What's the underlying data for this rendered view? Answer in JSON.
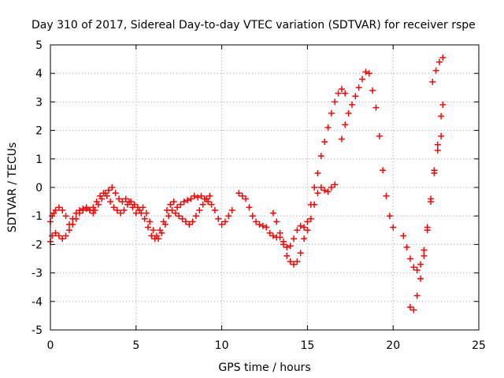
{
  "chart_data": {
    "type": "scatter",
    "title": "Day 310 of 2017, Sidereal Day-to-day VTEC variation (SDTVAR) for receiver rspe",
    "xlabel": "GPS time / hours",
    "ylabel": "SDTVAR / TECUs",
    "xlim": [
      0,
      25
    ],
    "ylim": [
      -5,
      5
    ],
    "x_ticks": [
      0,
      5,
      10,
      15,
      20,
      25
    ],
    "y_ticks": [
      -5,
      -4,
      -3,
      -2,
      -1,
      0,
      1,
      2,
      3,
      4,
      5
    ],
    "grid": true,
    "marker": "+",
    "color": "#ff0000",
    "series": [
      {
        "points": [
          [
            0.0,
            -1.2
          ],
          [
            0.1,
            -1.0
          ],
          [
            0.2,
            -0.9
          ],
          [
            0.3,
            -0.8
          ],
          [
            0.5,
            -0.7
          ],
          [
            0.7,
            -0.8
          ],
          [
            0.9,
            -1.0
          ],
          [
            1.1,
            -1.3
          ],
          [
            1.3,
            -1.1
          ],
          [
            1.5,
            -0.9
          ],
          [
            1.7,
            -0.8
          ],
          [
            1.9,
            -0.75
          ],
          [
            2.1,
            -0.7
          ],
          [
            2.3,
            -0.8
          ],
          [
            2.5,
            -0.9
          ],
          [
            2.6,
            -0.8
          ],
          [
            2.8,
            -0.6
          ],
          [
            3.0,
            -0.4
          ],
          [
            3.2,
            -0.2
          ],
          [
            3.4,
            -0.1
          ],
          [
            3.6,
            0.0
          ],
          [
            3.8,
            -0.2
          ],
          [
            4.0,
            -0.4
          ],
          [
            4.2,
            -0.5
          ],
          [
            4.4,
            -0.4
          ],
          [
            4.6,
            -0.5
          ],
          [
            4.8,
            -0.7
          ],
          [
            5.0,
            -0.9
          ],
          [
            5.2,
            -0.8
          ],
          [
            5.4,
            -0.7
          ],
          [
            5.6,
            -0.9
          ],
          [
            5.8,
            -1.2
          ],
          [
            6.0,
            -1.5
          ],
          [
            6.2,
            -1.7
          ],
          [
            6.4,
            -1.5
          ],
          [
            6.6,
            -1.2
          ],
          [
            6.8,
            -0.8
          ],
          [
            7.0,
            -0.6
          ],
          [
            7.2,
            -0.5
          ],
          [
            7.4,
            -0.7
          ],
          [
            7.6,
            -0.6
          ],
          [
            7.8,
            -0.5
          ],
          [
            8.0,
            -0.45
          ],
          [
            8.2,
            -0.4
          ],
          [
            8.4,
            -0.3
          ],
          [
            8.6,
            -0.35
          ],
          [
            8.8,
            -0.3
          ],
          [
            9.0,
            -0.4
          ],
          [
            9.2,
            -0.5
          ],
          [
            9.4,
            -0.6
          ],
          [
            9.6,
            -0.8
          ],
          [
            9.8,
            -1.1
          ],
          [
            10.0,
            -1.3
          ],
          [
            10.2,
            -1.2
          ],
          [
            10.4,
            -1.0
          ],
          [
            10.6,
            -0.8
          ]
        ]
      },
      {
        "points": [
          [
            0.0,
            -1.9
          ],
          [
            0.1,
            -1.7
          ],
          [
            0.3,
            -1.6
          ],
          [
            0.5,
            -1.7
          ],
          [
            0.7,
            -1.8
          ],
          [
            0.9,
            -1.7
          ],
          [
            1.1,
            -1.5
          ],
          [
            1.3,
            -1.3
          ],
          [
            1.5,
            -1.1
          ],
          [
            1.7,
            -0.9
          ],
          [
            1.9,
            -0.8
          ],
          [
            2.1,
            -0.75
          ],
          [
            2.3,
            -0.8
          ],
          [
            2.5,
            -0.7
          ],
          [
            2.7,
            -0.5
          ],
          [
            2.9,
            -0.3
          ],
          [
            3.1,
            -0.2
          ],
          [
            3.3,
            -0.3
          ],
          [
            3.5,
            -0.5
          ],
          [
            3.7,
            -0.7
          ],
          [
            3.9,
            -0.8
          ],
          [
            4.1,
            -0.9
          ],
          [
            4.3,
            -0.8
          ],
          [
            4.5,
            -0.6
          ],
          [
            4.7,
            -0.5
          ],
          [
            4.9,
            -0.6
          ],
          [
            5.1,
            -0.7
          ],
          [
            5.3,
            -0.9
          ],
          [
            5.5,
            -1.1
          ],
          [
            5.7,
            -1.4
          ],
          [
            5.9,
            -1.7
          ],
          [
            6.1,
            -1.8
          ],
          [
            6.3,
            -1.8
          ],
          [
            6.5,
            -1.6
          ],
          [
            6.7,
            -1.3
          ],
          [
            6.9,
            -1.0
          ],
          [
            7.1,
            -0.8
          ],
          [
            7.3,
            -0.9
          ],
          [
            7.5,
            -1.0
          ],
          [
            7.7,
            -1.1
          ],
          [
            7.9,
            -1.2
          ],
          [
            8.1,
            -1.3
          ],
          [
            8.3,
            -1.2
          ],
          [
            8.5,
            -1.0
          ],
          [
            8.7,
            -0.8
          ],
          [
            8.9,
            -0.6
          ],
          [
            9.1,
            -0.4
          ],
          [
            9.3,
            -0.3
          ]
        ]
      },
      {
        "points": [
          [
            11.0,
            -0.2
          ],
          [
            11.2,
            -0.3
          ],
          [
            11.4,
            -0.4
          ],
          [
            11.6,
            -0.7
          ],
          [
            11.8,
            -1.0
          ],
          [
            12.0,
            -1.2
          ],
          [
            12.2,
            -1.3
          ],
          [
            12.4,
            -1.35
          ],
          [
            12.6,
            -1.4
          ],
          [
            12.8,
            -1.6
          ],
          [
            13.0,
            -1.7
          ],
          [
            13.2,
            -1.75
          ],
          [
            13.4,
            -1.75
          ],
          [
            13.6,
            -1.9
          ],
          [
            13.8,
            -2.1
          ],
          [
            14.0,
            -2.05
          ],
          [
            14.2,
            -1.8
          ],
          [
            14.4,
            -1.5
          ],
          [
            14.6,
            -1.35
          ],
          [
            14.8,
            -1.4
          ],
          [
            15.0,
            -1.5
          ],
          [
            15.2,
            -1.1
          ],
          [
            15.4,
            -0.6
          ],
          [
            15.6,
            -0.2
          ],
          [
            15.8,
            0.0
          ],
          [
            16.0,
            -0.1
          ],
          [
            16.2,
            -0.15
          ],
          [
            16.4,
            0.0
          ],
          [
            16.6,
            0.1
          ]
        ]
      },
      {
        "points": [
          [
            13.0,
            -0.9
          ],
          [
            13.2,
            -1.2
          ],
          [
            13.4,
            -1.6
          ],
          [
            13.6,
            -2.0
          ],
          [
            13.8,
            -2.4
          ],
          [
            14.0,
            -2.6
          ],
          [
            14.2,
            -2.7
          ],
          [
            14.4,
            -2.6
          ],
          [
            14.6,
            -2.3
          ],
          [
            14.8,
            -1.8
          ],
          [
            15.0,
            -1.2
          ],
          [
            15.2,
            -0.6
          ],
          [
            15.4,
            0.0
          ],
          [
            15.6,
            0.5
          ],
          [
            15.8,
            1.1
          ],
          [
            16.0,
            1.6
          ],
          [
            16.2,
            2.1
          ],
          [
            16.4,
            2.6
          ],
          [
            16.6,
            3.0
          ],
          [
            16.8,
            3.3
          ],
          [
            17.0,
            3.45
          ],
          [
            17.2,
            3.3
          ]
        ]
      },
      {
        "points": [
          [
            17.0,
            1.7
          ],
          [
            17.2,
            2.2
          ],
          [
            17.4,
            2.6
          ],
          [
            17.6,
            2.9
          ],
          [
            17.8,
            3.2
          ],
          [
            18.0,
            3.5
          ],
          [
            18.2,
            3.8
          ],
          [
            18.4,
            4.05
          ],
          [
            18.6,
            4.0
          ],
          [
            18.8,
            3.4
          ],
          [
            19.0,
            2.8
          ],
          [
            19.2,
            1.8
          ],
          [
            19.4,
            0.6
          ],
          [
            19.6,
            -0.3
          ],
          [
            19.8,
            -1.0
          ],
          [
            20.0,
            -1.4
          ]
        ]
      },
      {
        "points": [
          [
            20.6,
            -1.7
          ],
          [
            20.8,
            -2.1
          ],
          [
            21.0,
            -2.5
          ],
          [
            21.2,
            -2.8
          ],
          [
            21.4,
            -2.9
          ],
          [
            21.6,
            -2.7
          ],
          [
            21.8,
            -2.2
          ],
          [
            22.0,
            -1.4
          ],
          [
            22.2,
            -0.4
          ],
          [
            22.4,
            0.6
          ],
          [
            22.6,
            1.3
          ],
          [
            22.8,
            1.8
          ]
        ]
      },
      {
        "points": [
          [
            21.0,
            -4.2
          ],
          [
            21.2,
            -4.3
          ],
          [
            21.4,
            -3.8
          ],
          [
            21.6,
            -3.2
          ],
          [
            21.8,
            -2.4
          ],
          [
            22.0,
            -1.5
          ],
          [
            22.2,
            -0.5
          ],
          [
            22.4,
            0.5
          ],
          [
            22.6,
            1.5
          ],
          [
            22.8,
            2.5
          ],
          [
            22.9,
            2.9
          ],
          [
            22.3,
            3.7
          ],
          [
            22.5,
            4.1
          ],
          [
            22.7,
            4.4
          ],
          [
            22.9,
            4.55
          ]
        ]
      }
    ]
  }
}
